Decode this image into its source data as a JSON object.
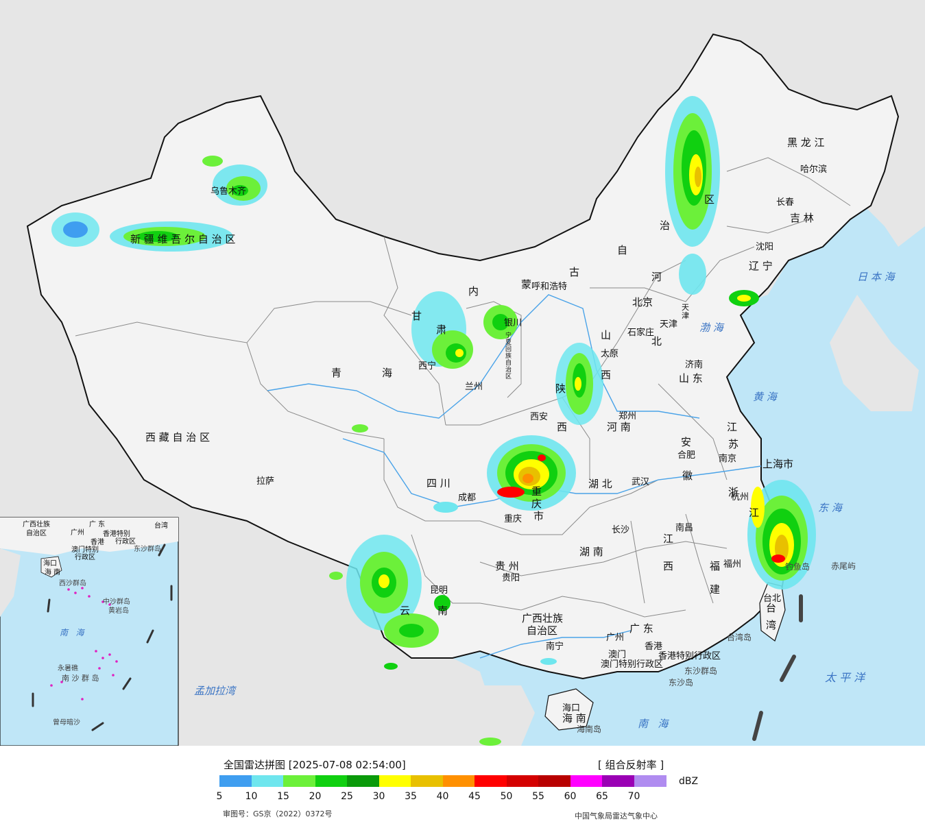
{
  "colors": {
    "sea": "#bfe6f7",
    "foreign_land": "#e6e6e6",
    "china_land": "#f3f3f3",
    "border": "#111111",
    "province_border": "#8a8a8a",
    "river": "#4aa3e8"
  },
  "legend": {
    "title": "全国雷达拼图 [2025-07-08 02:54:00]",
    "product": "[ 组合反射率 ]",
    "unit": "dBZ",
    "ticks": [
      "5",
      "10",
      "15",
      "20",
      "25",
      "30",
      "35",
      "40",
      "45",
      "50",
      "55",
      "60",
      "65",
      "70"
    ],
    "colors": [
      "#3f9ef0",
      "#6fe6ee",
      "#6cf03a",
      "#10d010",
      "#0a9a0a",
      "#ffff00",
      "#e8c000",
      "#ff9000",
      "#ff0000",
      "#d40000",
      "#b80000",
      "#ff00ff",
      "#9a00b4",
      "#b08cf0"
    ],
    "approval": "审图号：GS京（2022）0372号",
    "credit": "中国气象局雷达气象中心"
  },
  "map": {
    "province_labels": [
      {
        "id": "xinjiang",
        "text": "新 疆 维 吾 尔 自 治 区"
      },
      {
        "id": "xizang",
        "text": "西 藏 自 治 区"
      },
      {
        "id": "qinghai1",
        "text": "青"
      },
      {
        "id": "qinghai2",
        "text": "海"
      },
      {
        "id": "gansu1",
        "text": "甘"
      },
      {
        "id": "gansu2",
        "text": "肃"
      },
      {
        "id": "nm1",
        "text": "内"
      },
      {
        "id": "nm2",
        "text": "蒙"
      },
      {
        "id": "nm3",
        "text": "古"
      },
      {
        "id": "nm4",
        "text": "自"
      },
      {
        "id": "nm5",
        "text": "治"
      },
      {
        "id": "nm6",
        "text": "区"
      },
      {
        "id": "heilongjiang",
        "text": "黑 龙 江"
      },
      {
        "id": "jilin",
        "text": "吉 林"
      },
      {
        "id": "liaoning",
        "text": "辽 宁"
      },
      {
        "id": "hebei1",
        "text": "河"
      },
      {
        "id": "hebei2",
        "text": "北"
      },
      {
        "id": "shanxi1",
        "text": "山"
      },
      {
        "id": "shanxi2",
        "text": "西"
      },
      {
        "id": "shaanxi1",
        "text": "陕"
      },
      {
        "id": "shaanxi2",
        "text": "西"
      },
      {
        "id": "shandong",
        "text": "山 东"
      },
      {
        "id": "henan",
        "text": "河 南"
      },
      {
        "id": "jiangsu1",
        "text": "江"
      },
      {
        "id": "jiangsu2",
        "text": "苏"
      },
      {
        "id": "anhui1",
        "text": "安"
      },
      {
        "id": "anhui2",
        "text": "徽"
      },
      {
        "id": "shanghai",
        "text": "上海市"
      },
      {
        "id": "zhejiang1",
        "text": "浙"
      },
      {
        "id": "zhejiang2",
        "text": "江"
      },
      {
        "id": "hubei",
        "text": "湖 北"
      },
      {
        "id": "sichuan",
        "text": "四 川"
      },
      {
        "id": "chongqing1",
        "text": "重"
      },
      {
        "id": "chongqing2",
        "text": "庆"
      },
      {
        "id": "chongqing3",
        "text": "市"
      },
      {
        "id": "hunan",
        "text": "湖 南"
      },
      {
        "id": "jiangxi1",
        "text": "江"
      },
      {
        "id": "jiangxi2",
        "text": "西"
      },
      {
        "id": "fujian1",
        "text": "福"
      },
      {
        "id": "fujian2",
        "text": "建"
      },
      {
        "id": "guizhou",
        "text": "贵 州"
      },
      {
        "id": "yunnan1",
        "text": "云"
      },
      {
        "id": "yunnan2",
        "text": "南"
      },
      {
        "id": "guangxi1",
        "text": "广西壮族"
      },
      {
        "id": "guangxi2",
        "text": "自治区"
      },
      {
        "id": "guangdong",
        "text": "广 东"
      },
      {
        "id": "hainan",
        "text": "海 南"
      },
      {
        "id": "taiwan1",
        "text": "台"
      },
      {
        "id": "taiwan2",
        "text": "湾"
      },
      {
        "id": "hk",
        "text": "香港特别行政区"
      },
      {
        "id": "macau",
        "text": "澳门特别行政区"
      },
      {
        "id": "ningxia",
        "text": "宁夏回族自治区"
      },
      {
        "id": "tianjin",
        "text": "天津"
      }
    ],
    "cities": [
      {
        "id": "urumqi",
        "text": "乌鲁木齐"
      },
      {
        "id": "lhasa",
        "text": "拉萨"
      },
      {
        "id": "xining",
        "text": "西宁"
      },
      {
        "id": "lanzhou",
        "text": "兰州"
      },
      {
        "id": "yinchuan",
        "text": "银川"
      },
      {
        "id": "hohhot",
        "text": "呼和浩特"
      },
      {
        "id": "beijing",
        "text": "北京"
      },
      {
        "id": "tianjin_c",
        "text": "天津"
      },
      {
        "id": "shijiazhuang",
        "text": "石家庄"
      },
      {
        "id": "taiyuan",
        "text": "太原"
      },
      {
        "id": "xian",
        "text": "西安"
      },
      {
        "id": "zhengzhou",
        "text": "郑州"
      },
      {
        "id": "jinan",
        "text": "济南"
      },
      {
        "id": "harbin",
        "text": "哈尔滨"
      },
      {
        "id": "changchun",
        "text": "长春"
      },
      {
        "id": "shenyang",
        "text": "沈阳"
      },
      {
        "id": "hefei",
        "text": "合肥"
      },
      {
        "id": "nanjing",
        "text": "南京"
      },
      {
        "id": "hangzhou",
        "text": "杭州"
      },
      {
        "id": "wuhan",
        "text": "武汉"
      },
      {
        "id": "chengdu",
        "text": "成都"
      },
      {
        "id": "chongqing_c",
        "text": "重庆"
      },
      {
        "id": "changsha",
        "text": "长沙"
      },
      {
        "id": "nanchang",
        "text": "南昌"
      },
      {
        "id": "fuzhou",
        "text": "福州"
      },
      {
        "id": "guiyang",
        "text": "贵阳"
      },
      {
        "id": "kunming",
        "text": "昆明"
      },
      {
        "id": "nanning",
        "text": "南宁"
      },
      {
        "id": "guangzhou",
        "text": "广州"
      },
      {
        "id": "hongkong",
        "text": "香港"
      },
      {
        "id": "macao",
        "text": "澳门"
      },
      {
        "id": "haikou",
        "text": "海口"
      },
      {
        "id": "taibei",
        "text": "台北"
      }
    ],
    "seas": [
      {
        "id": "riben",
        "text": "日 本 海"
      },
      {
        "id": "bohai",
        "text": "渤 海"
      },
      {
        "id": "huanghai",
        "text": "黄 海"
      },
      {
        "id": "donghai",
        "text": "东 海"
      },
      {
        "id": "nanhai",
        "text": "南   海"
      },
      {
        "id": "taipingyang",
        "text": "太 平 洋"
      },
      {
        "id": "mengjiala",
        "text": "孟加拉湾"
      }
    ],
    "islands": [
      {
        "id": "taiwan_dao",
        "text": "台湾岛"
      },
      {
        "id": "hainan_dao",
        "text": "海南岛"
      },
      {
        "id": "dongsha_qd",
        "text": "东沙群岛"
      },
      {
        "id": "dongsha_d",
        "text": "东沙岛"
      },
      {
        "id": "diaoyu",
        "text": "钓鱼岛"
      },
      {
        "id": "chiwei",
        "text": "赤尾屿"
      }
    ],
    "inset": {
      "labels": [
        "广西壮族",
        "自治区",
        "广州",
        "广 东",
        "香港",
        "台湾",
        "澳门特别",
        "行政区",
        "香港特别",
        "行政区",
        "东沙群岛",
        "海口",
        "海 南",
        "西沙群岛",
        "中沙群岛",
        "黄岩岛",
        "南   海",
        "永暑礁",
        "南 沙 群 岛",
        "曾母暗沙"
      ]
    }
  }
}
